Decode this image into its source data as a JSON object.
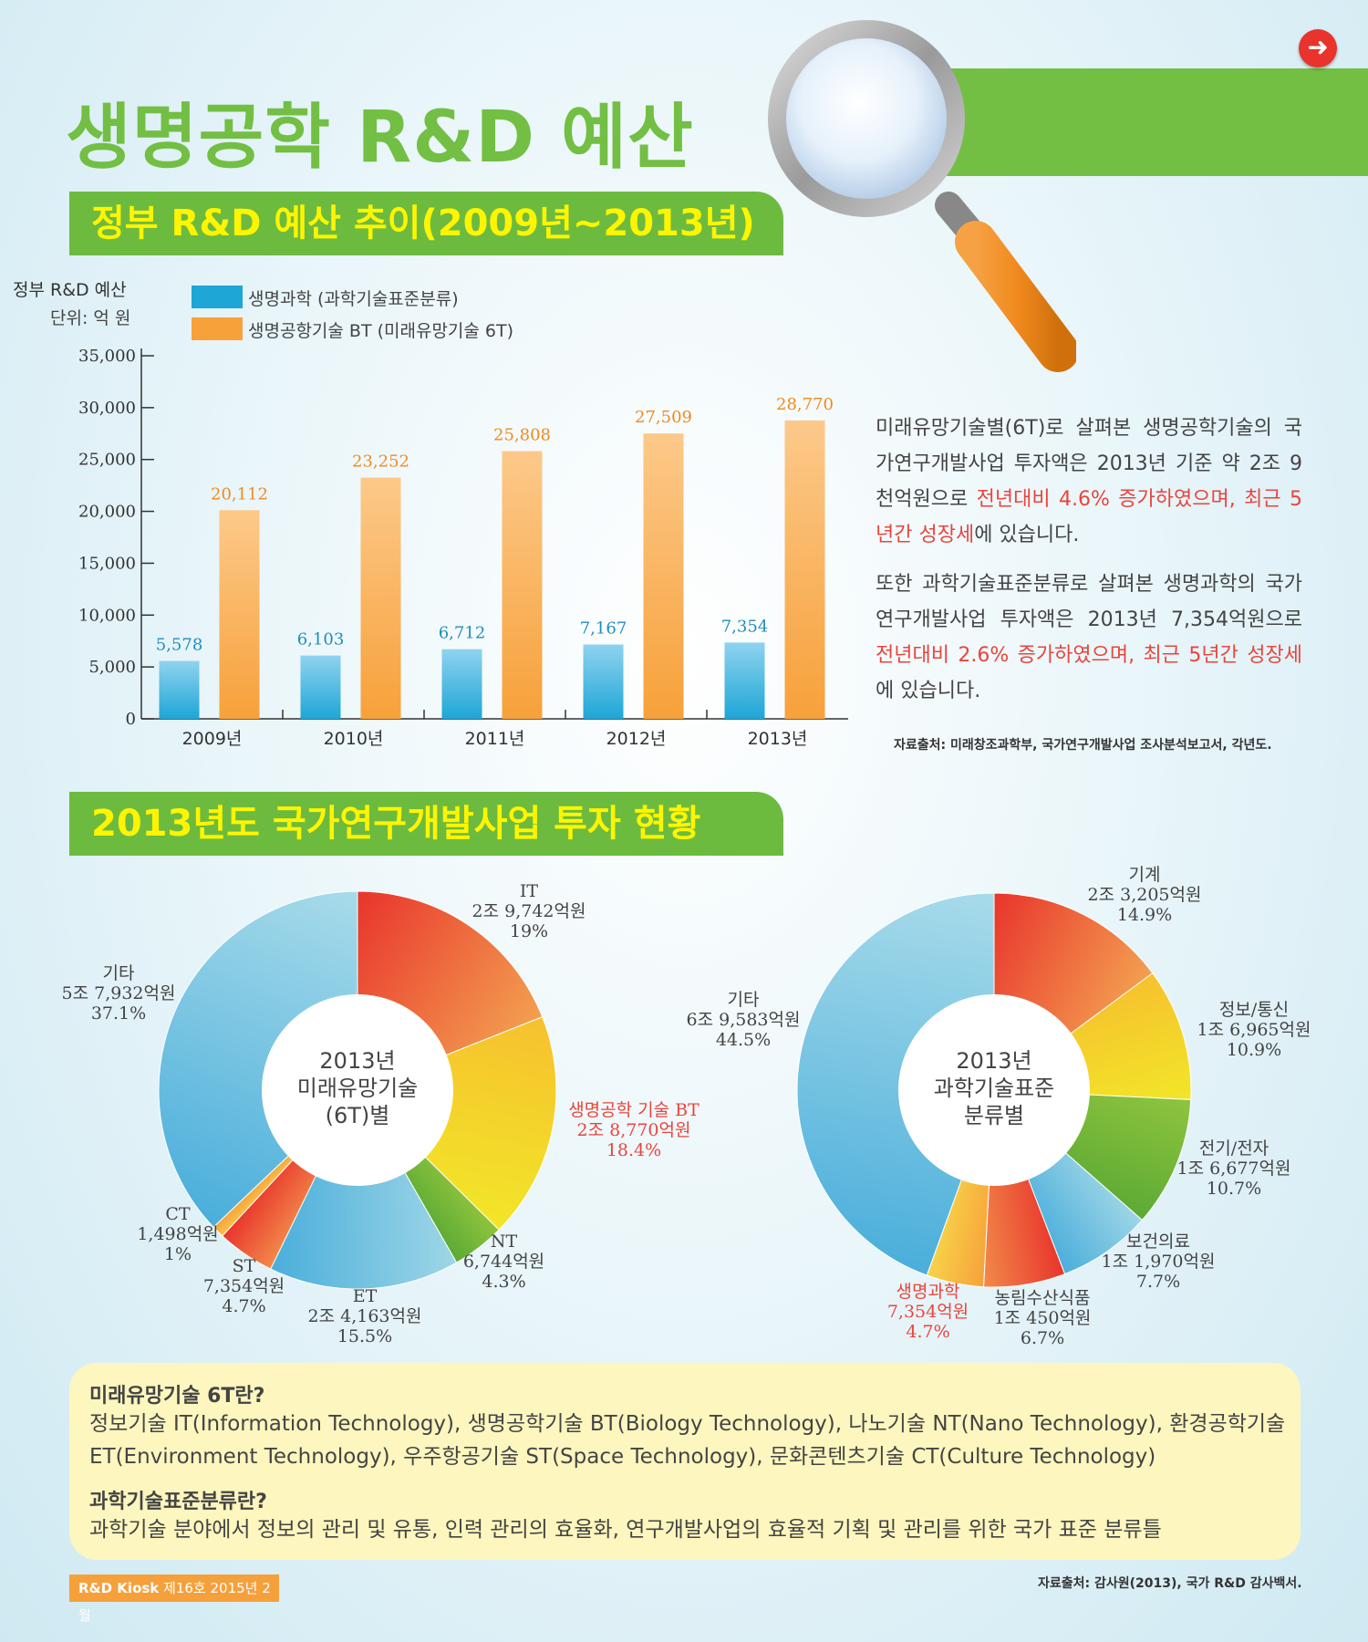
{
  "title": "생명공학 R&D 예산",
  "section1_title": "정부 R&D 예산 추이(2009년~2013년)",
  "section2_title": "2013년도 국가연구개발사업 투자 현황",
  "chart_data": [
    {
      "type": "bar",
      "title": "",
      "ylabel": "정부 R&D 예산",
      "unit": "단위: 억 원",
      "categories": [
        "2009년",
        "2010년",
        "2011년",
        "2012년",
        "2013년"
      ],
      "yticks": [
        "0",
        "5,000",
        "10,000",
        "15,000",
        "20,000",
        "25,000",
        "30,000",
        "35,000"
      ],
      "ylim": [
        0,
        35000
      ],
      "series": [
        {
          "name": "생명과학 (과학기술표준분류)",
          "color": "#1ea6d6",
          "values": [
            5578,
            6103,
            6712,
            7167,
            7354
          ],
          "labels": [
            "5,578",
            "6,103",
            "6,712",
            "7,167",
            "7,354"
          ]
        },
        {
          "name": "생명공항기술 BT (미래유망기술 6T)",
          "color": "#f7a13a",
          "values": [
            20112,
            23252,
            25808,
            27509,
            28770
          ],
          "labels": [
            "20,112",
            "23,252",
            "25,808",
            "27,509",
            "28,770"
          ]
        }
      ],
      "legend": "top-left"
    },
    {
      "type": "pie",
      "center_label": [
        "2013년",
        "미래유망기술",
        "(6T)별"
      ],
      "slices": [
        {
          "name": "IT",
          "amount": "2조 9,742억원",
          "percent": 19,
          "percent_label": "19%",
          "color_from": "#e8342c",
          "color_to": "#f3a050"
        },
        {
          "name": "생명공학 기술 BT",
          "amount": "2조 8,770억원",
          "percent": 18.4,
          "percent_label": "18.4%",
          "color_from": "#f6c12e",
          "color_to": "#f2e628",
          "highlight": true
        },
        {
          "name": "NT",
          "amount": "6,744억원",
          "percent": 4.3,
          "percent_label": "4.3%",
          "color_from": "#8fc43e",
          "color_to": "#5caa34"
        },
        {
          "name": "ET",
          "amount": "2조 4,163억원",
          "percent": 15.5,
          "percent_label": "15.5%",
          "color_from": "#9ed6e6",
          "color_to": "#4aaedb"
        },
        {
          "name": "ST",
          "amount": "7,354억원",
          "percent": 4.7,
          "percent_label": "4.7%",
          "color_from": "#f28a4a",
          "color_to": "#e8342c"
        },
        {
          "name": "CT",
          "amount": "1,498억원",
          "percent": 1,
          "percent_label": "1%",
          "color_from": "#f7c24a",
          "color_to": "#f7a13a"
        },
        {
          "name": "기타",
          "amount": "5조 7,932억원",
          "percent": 37.1,
          "percent_label": "37.1%",
          "color_from": "#4aaedb",
          "color_to": "#a8dbea"
        }
      ]
    },
    {
      "type": "pie",
      "center_label": [
        "2013년",
        "과학기술표준",
        "분류별"
      ],
      "slices": [
        {
          "name": "기계",
          "amount": "2조 3,205억원",
          "percent": 14.9,
          "percent_label": "14.9%",
          "color_from": "#e8342c",
          "color_to": "#f3a050"
        },
        {
          "name": "정보/통신",
          "amount": "1조 6,965억원",
          "percent": 10.9,
          "percent_label": "10.9%",
          "color_from": "#f6c12e",
          "color_to": "#f2e628"
        },
        {
          "name": "전기/전자",
          "amount": "1조 6,677억원",
          "percent": 10.7,
          "percent_label": "10.7%",
          "color_from": "#8fc43e",
          "color_to": "#5caa34"
        },
        {
          "name": "보건의료",
          "amount": "1조 1,970억원",
          "percent": 7.7,
          "percent_label": "7.7%",
          "color_from": "#9ed6e6",
          "color_to": "#4aaedb"
        },
        {
          "name": "농림수산식품",
          "amount": "1조 450억원",
          "percent": 6.7,
          "percent_label": "6.7%",
          "color_from": "#e8342c",
          "color_to": "#f28a4a"
        },
        {
          "name": "생명과학",
          "amount": "7,354억원",
          "percent": 4.7,
          "percent_label": "4.7%",
          "color_from": "#f7a13a",
          "color_to": "#f7d44a",
          "highlight": true
        },
        {
          "name": "기타",
          "amount": "6조 9,583억원",
          "percent": 44.5,
          "percent_label": "44.5%",
          "color_from": "#4aaedb",
          "color_to": "#a8dbea"
        }
      ]
    }
  ],
  "paragraph1": {
    "part1": "미래유망기술별(6T)로 살펴본 생명공학기술의 국가연구개발사업 투자액은 2013년 기준 약 2조 9천억원으로 ",
    "red1": "전년대비 4.6% 증가하였으며, 최근 5년간 성장세",
    "part2": "에 있습니다."
  },
  "paragraph2": {
    "part1": "또한 과학기술표준분류로 살펴본 생명과학의 국가연구개발사업 투자액은 2013년 7,354억원으로 ",
    "red1": "전년대비 2.6% 증가하였으며, 최근 5년간 성장세",
    "part2": "에 있습니다."
  },
  "source1": "자료출처: 미래창조과학부, 국가연구개발사업 조사분석보고서, 각년도.",
  "info": {
    "h1": "미래유망기술 6T란?",
    "t1a": "정보기술 IT(Information Technology), 생명공학기술 BT(Biology Technology), 나노기술 NT(Nano Technology), 환경공학기술",
    "t1b": "ET(Environment Technology), 우주항공기술 ST(Space Technology), 문화콘텐츠기술 CT(Culture Technology)",
    "h2": "과학기술표준분류란?",
    "t2": "과학기술 분야에서 정보의 관리 및 유통, 인력 관리의 효율화, 연구개발사업의 효율적 기획 및 관리를 위한 국가 표준 분류틀"
  },
  "footer": {
    "badge_bold": "R&D Kiosk",
    "badge_rest": " 제16호 2015년 2월",
    "source": "자료출처: 감사원(2013), 국가 R&D 감사백서."
  },
  "icons": {
    "next": "arrow-right-icon",
    "magnifier": "magnifying-glass-icon"
  }
}
